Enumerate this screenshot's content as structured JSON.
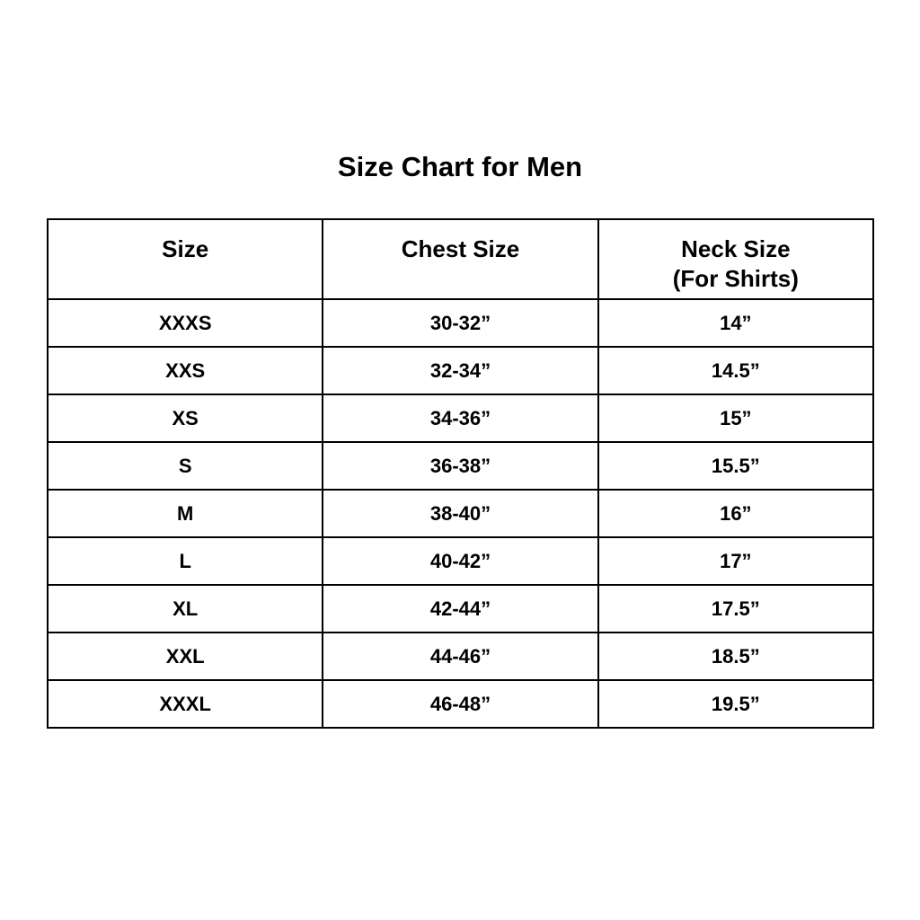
{
  "title": "Size Chart for Men",
  "headers": [
    {
      "line1": "Size",
      "line2": ""
    },
    {
      "line1": "Chest Size",
      "line2": ""
    },
    {
      "line1": "Neck Size",
      "line2": "(For Shirts)"
    }
  ],
  "rows": [
    [
      "XXXS",
      "30-32”",
      "14”"
    ],
    [
      "XXS",
      "32-34”",
      "14.5”"
    ],
    [
      "XS",
      "34-36”",
      "15”"
    ],
    [
      "S",
      "36-38”",
      "15.5”"
    ],
    [
      "M",
      "38-40”",
      "16”"
    ],
    [
      "L",
      "40-42”",
      "17”"
    ],
    [
      "XL",
      "42-44”",
      "17.5”"
    ],
    [
      "XXL",
      "44-46”",
      "18.5”"
    ],
    [
      "XXXL",
      "46-48”",
      "19.5”"
    ]
  ]
}
